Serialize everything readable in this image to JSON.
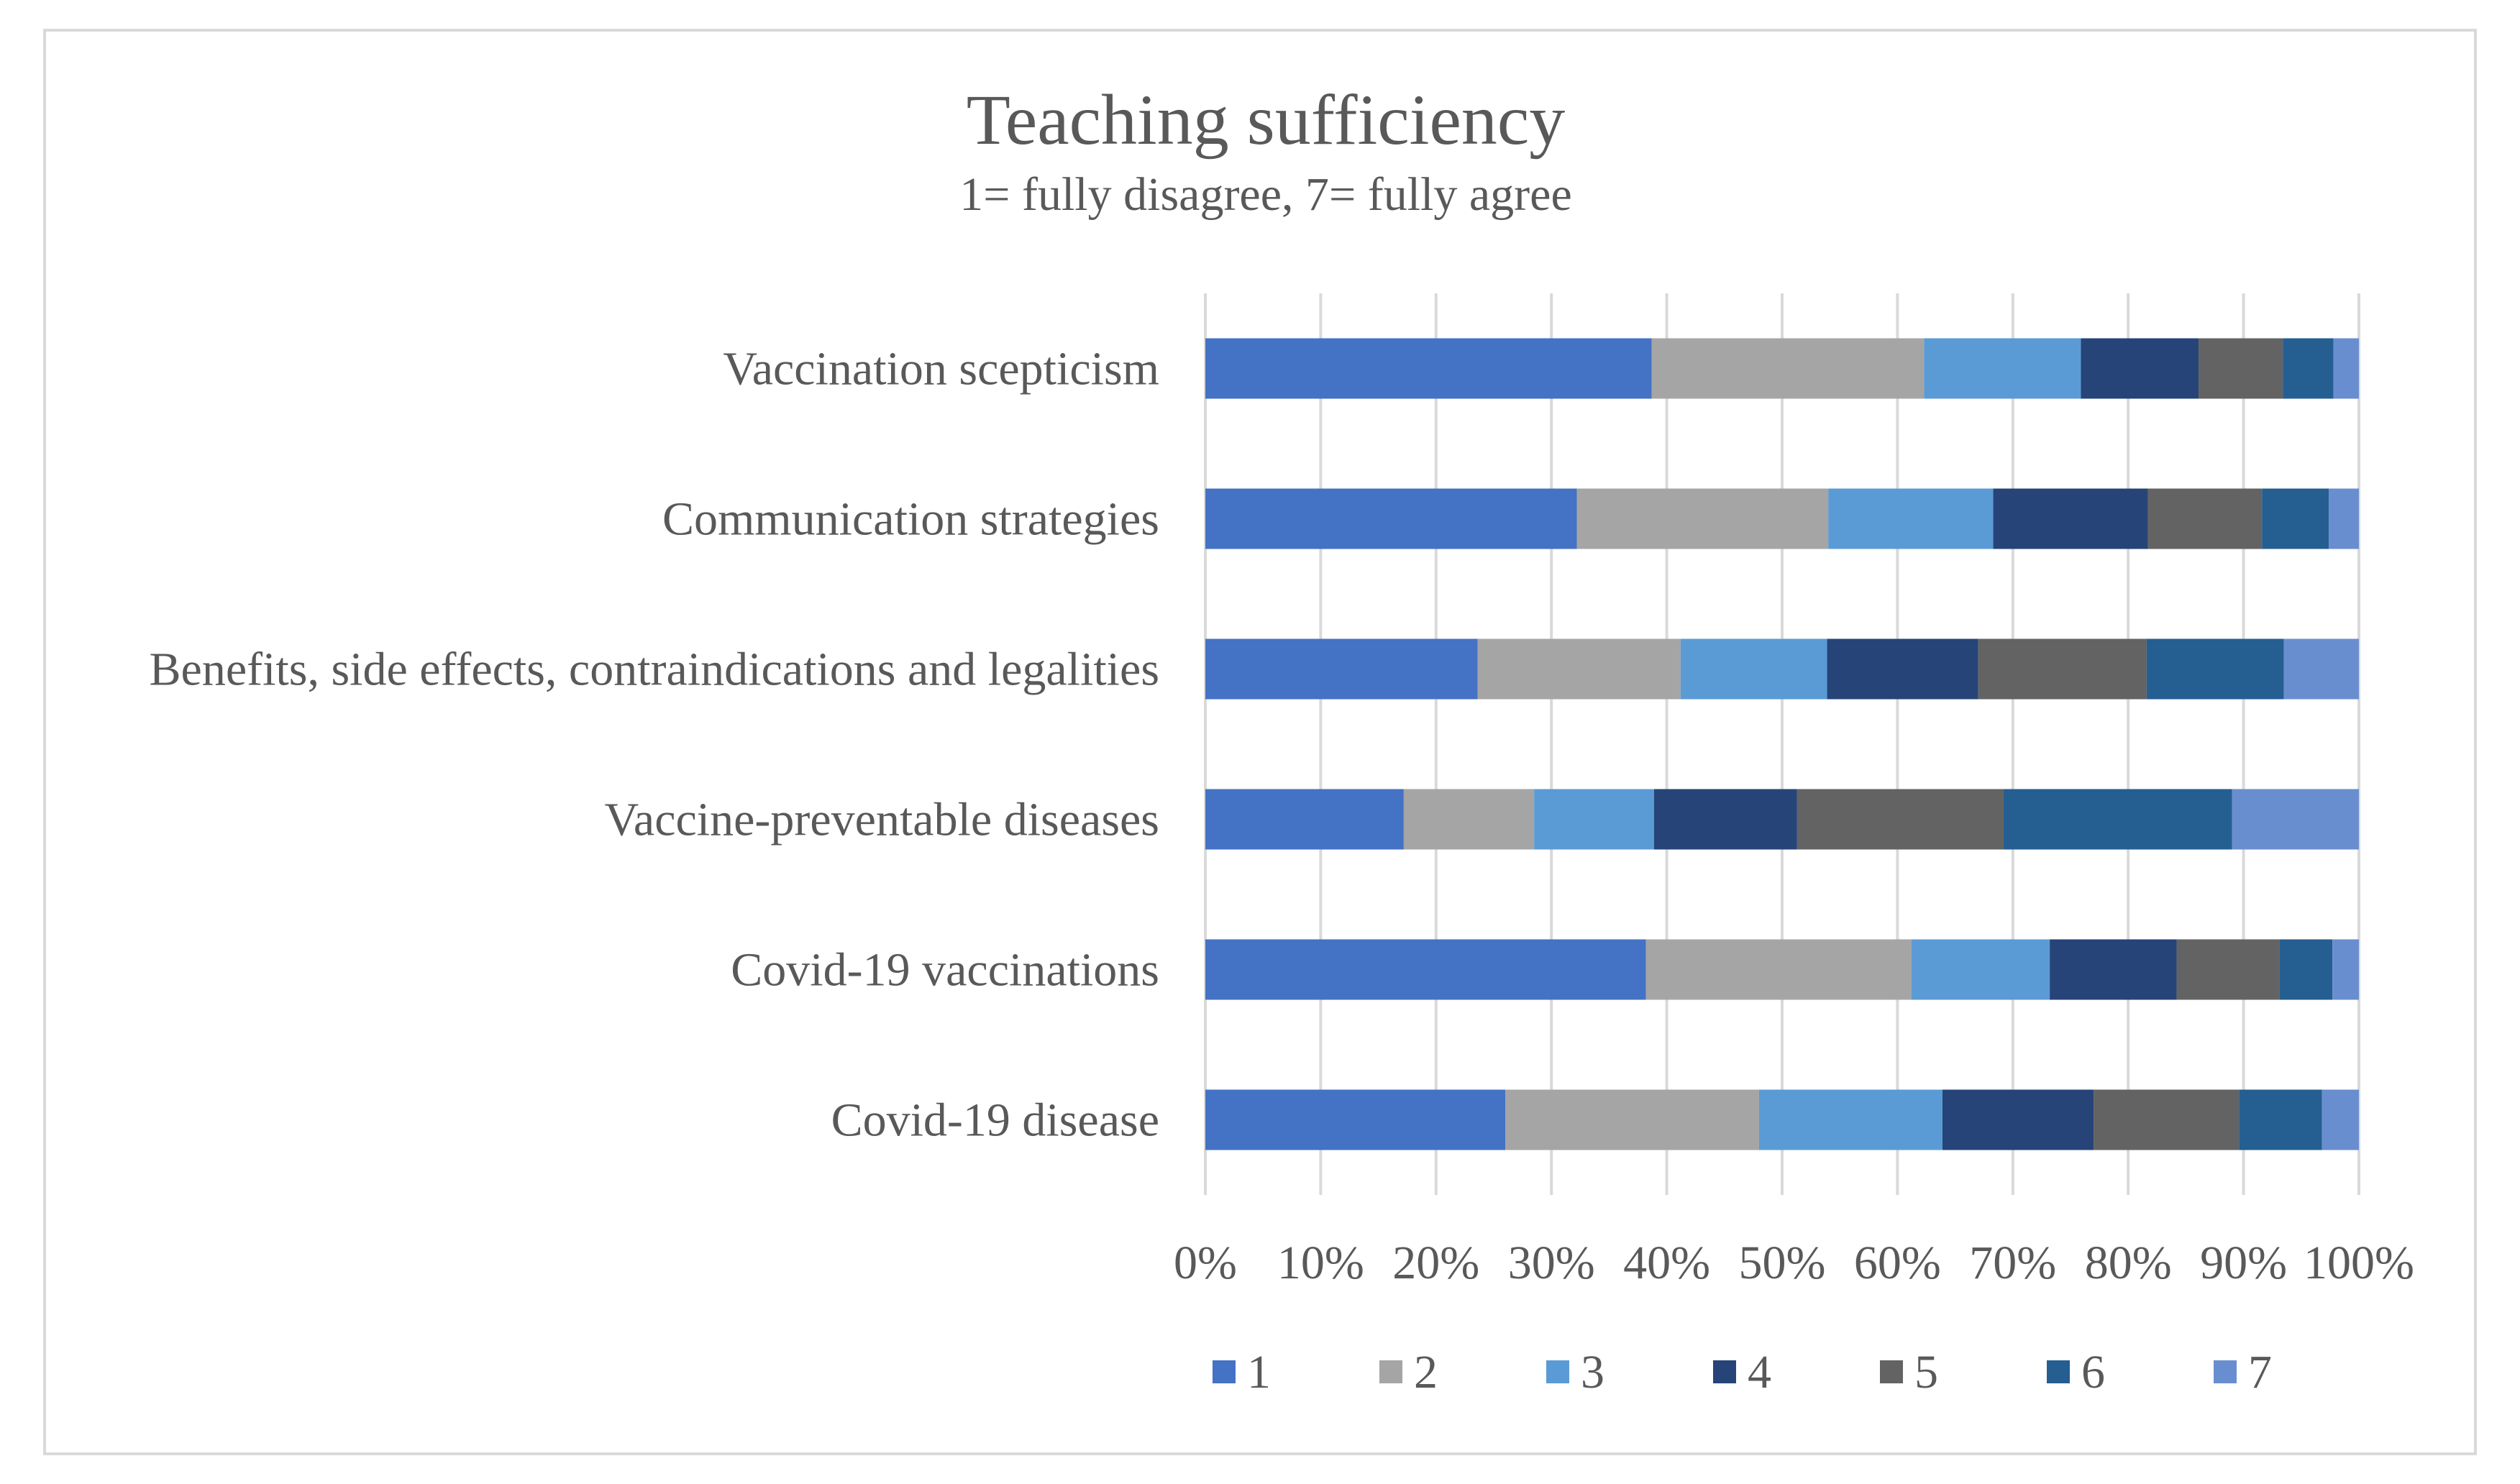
{
  "chart_data": {
    "type": "bar",
    "orientation": "horizontal",
    "stacked": "percent",
    "title": "Teaching sufficiency",
    "subtitle": "1= fully disagree, 7= fully agree",
    "xlabel": "",
    "ylabel": "",
    "xlim": [
      0,
      100
    ],
    "x_ticks": [
      "0%",
      "10%",
      "20%",
      "30%",
      "40%",
      "50%",
      "60%",
      "70%",
      "80%",
      "90%",
      "100%"
    ],
    "grid": true,
    "legend_position": "bottom",
    "categories": [
      "Vaccination scepticism",
      "Communication strategies",
      "Benefits, side effects, contraindications and legalities",
      "Vaccine-preventable diseases",
      "Covid-19 vaccinations",
      "Covid-19 disease"
    ],
    "series": [
      {
        "name": "1",
        "color": "#4472c4",
        "values": [
          38.7,
          32.2,
          23.6,
          17.2,
          38.2,
          26.0
        ]
      },
      {
        "name": "2",
        "color": "#a5a5a5",
        "values": [
          23.6,
          21.8,
          17.6,
          11.3,
          23.0,
          22.0
        ]
      },
      {
        "name": "3",
        "color": "#5b9bd5",
        "values": [
          13.6,
          14.3,
          12.7,
          10.4,
          12.0,
          15.9
        ]
      },
      {
        "name": "4",
        "color": "#264478",
        "values": [
          10.2,
          13.4,
          13.1,
          12.4,
          11.0,
          13.1
        ]
      },
      {
        "name": "5",
        "color": "#636363",
        "values": [
          7.3,
          9.9,
          14.6,
          17.9,
          8.9,
          12.6
        ]
      },
      {
        "name": "6",
        "color": "#255e91",
        "values": [
          4.4,
          5.8,
          11.9,
          19.8,
          4.6,
          7.2
        ]
      },
      {
        "name": "7",
        "color": "#698ed0",
        "values": [
          2.2,
          2.6,
          6.5,
          11.0,
          2.3,
          3.2
        ]
      }
    ]
  }
}
